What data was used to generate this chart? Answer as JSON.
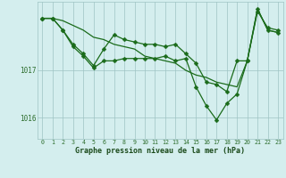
{
  "title": "Graphe pression niveau de la mer (hPa)",
  "bg_color": "#d4eeee",
  "line_color": "#1a6b1a",
  "grid_color": "#9ec4c4",
  "axis_color": "#2d6e2d",
  "xlabel_color": "#1a4a1a",
  "xlim": [
    -0.5,
    23.5
  ],
  "ylim": [
    1015.55,
    1018.45
  ],
  "yticks": [
    1016,
    1017
  ],
  "xticks": [
    0,
    1,
    2,
    3,
    4,
    5,
    6,
    7,
    8,
    9,
    10,
    11,
    12,
    13,
    14,
    15,
    16,
    17,
    18,
    19,
    20,
    21,
    22,
    23
  ],
  "series1_x": [
    0,
    1,
    2,
    3,
    4,
    5,
    6,
    7,
    8,
    9,
    10,
    11,
    12,
    13,
    14,
    15,
    16,
    17,
    18,
    19,
    20,
    21,
    22,
    23
  ],
  "series1_y": [
    1018.1,
    1018.1,
    1017.85,
    1017.55,
    1017.35,
    1017.1,
    1017.45,
    1017.75,
    1017.65,
    1017.6,
    1017.55,
    1017.55,
    1017.5,
    1017.55,
    1017.35,
    1017.15,
    1016.75,
    1016.7,
    1016.55,
    1017.2,
    1017.2,
    1018.25,
    1017.9,
    1017.85
  ],
  "series2_x": [
    0,
    1,
    2,
    3,
    4,
    5,
    6,
    7,
    8,
    9,
    10,
    11,
    12,
    13,
    14,
    15,
    16,
    17,
    18,
    19,
    20,
    21,
    22,
    23
  ],
  "series2_y": [
    1018.1,
    1018.1,
    1017.85,
    1017.5,
    1017.3,
    1017.05,
    1017.2,
    1017.2,
    1017.25,
    1017.25,
    1017.25,
    1017.25,
    1017.3,
    1017.2,
    1017.25,
    1016.65,
    1016.25,
    1015.95,
    1016.3,
    1016.5,
    1017.2,
    1018.3,
    1017.85,
    1017.8
  ],
  "series3_x": [
    0,
    1,
    2,
    3,
    4,
    5,
    6,
    7,
    8,
    9,
    10,
    11,
    12,
    13,
    14,
    15,
    16,
    17,
    18,
    19,
    20,
    21,
    22,
    23
  ],
  "series3_y": [
    1018.1,
    1018.1,
    1018.05,
    1017.95,
    1017.85,
    1017.7,
    1017.65,
    1017.55,
    1017.5,
    1017.45,
    1017.3,
    1017.25,
    1017.2,
    1017.15,
    1017.0,
    1016.9,
    1016.85,
    1016.75,
    1016.7,
    1016.65,
    1017.2,
    1018.3,
    1017.85,
    1017.8
  ]
}
